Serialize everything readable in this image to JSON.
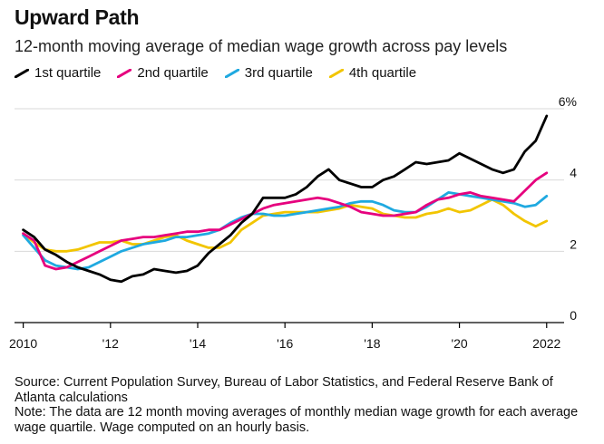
{
  "chart_data": {
    "type": "line",
    "title": "Upward Path",
    "subtitle": "12-month moving average of median wage growth across pay levels",
    "xlabel": "",
    "ylabel": "",
    "xlim": [
      2009.8,
      2022.4
    ],
    "ylim": [
      0,
      6
    ],
    "x_ticks": [
      2010,
      2012,
      2014,
      2016,
      2018,
      2020,
      2022
    ],
    "x_tick_labels": [
      "2010",
      "'12",
      "'14",
      "'16",
      "'18",
      "'20",
      "2022"
    ],
    "y_ticks": [
      0,
      2,
      4,
      6
    ],
    "y_tick_labels": [
      "0",
      "2",
      "4",
      "6%"
    ],
    "series": [
      {
        "name": "1st quartile",
        "color": "#000000",
        "x": [
          2010.0,
          2010.25,
          2010.5,
          2010.75,
          2011.0,
          2011.25,
          2011.5,
          2011.75,
          2012.0,
          2012.25,
          2012.5,
          2012.75,
          2013.0,
          2013.25,
          2013.5,
          2013.75,
          2014.0,
          2014.25,
          2014.5,
          2014.75,
          2015.0,
          2015.25,
          2015.5,
          2015.75,
          2016.0,
          2016.25,
          2016.5,
          2016.75,
          2017.0,
          2017.25,
          2017.5,
          2017.75,
          2018.0,
          2018.25,
          2018.5,
          2018.75,
          2019.0,
          2019.25,
          2019.5,
          2019.75,
          2020.0,
          2020.25,
          2020.5,
          2020.75,
          2021.0,
          2021.25,
          2021.5,
          2021.75,
          2022.0
        ],
        "values": [
          2.6,
          2.4,
          2.05,
          1.9,
          1.7,
          1.55,
          1.45,
          1.35,
          1.2,
          1.15,
          1.3,
          1.35,
          1.5,
          1.45,
          1.4,
          1.45,
          1.6,
          1.95,
          2.2,
          2.45,
          2.8,
          3.05,
          3.5,
          3.5,
          3.5,
          3.6,
          3.8,
          4.1,
          4.3,
          4.0,
          3.9,
          3.8,
          3.8,
          4.0,
          4.1,
          4.3,
          4.5,
          4.45,
          4.5,
          4.55,
          4.75,
          4.6,
          4.45,
          4.3,
          4.2,
          4.3,
          4.8,
          5.1,
          5.8
        ]
      },
      {
        "name": "2nd quartile",
        "color": "#e6007e",
        "x": [
          2010.0,
          2010.25,
          2010.5,
          2010.75,
          2011.0,
          2011.25,
          2011.5,
          2011.75,
          2012.0,
          2012.25,
          2012.5,
          2012.75,
          2013.0,
          2013.25,
          2013.5,
          2013.75,
          2014.0,
          2014.25,
          2014.5,
          2014.75,
          2015.0,
          2015.25,
          2015.5,
          2015.75,
          2016.0,
          2016.25,
          2016.5,
          2016.75,
          2017.0,
          2017.25,
          2017.5,
          2017.75,
          2018.0,
          2018.25,
          2018.5,
          2018.75,
          2019.0,
          2019.25,
          2019.5,
          2019.75,
          2020.0,
          2020.25,
          2020.5,
          2020.75,
          2021.0,
          2021.25,
          2021.5,
          2021.75,
          2022.0
        ],
        "values": [
          2.5,
          2.3,
          1.6,
          1.5,
          1.55,
          1.7,
          1.85,
          2.0,
          2.15,
          2.3,
          2.35,
          2.4,
          2.4,
          2.45,
          2.5,
          2.55,
          2.55,
          2.6,
          2.6,
          2.75,
          2.9,
          3.05,
          3.2,
          3.3,
          3.35,
          3.4,
          3.45,
          3.5,
          3.45,
          3.35,
          3.25,
          3.1,
          3.05,
          3.0,
          3.0,
          3.05,
          3.1,
          3.3,
          3.45,
          3.5,
          3.6,
          3.65,
          3.55,
          3.5,
          3.45,
          3.4,
          3.7,
          4.0,
          4.2
        ]
      },
      {
        "name": "3rd quartile",
        "color": "#1fa9e0",
        "x": [
          2010.0,
          2010.25,
          2010.5,
          2010.75,
          2011.0,
          2011.25,
          2011.5,
          2011.75,
          2012.0,
          2012.25,
          2012.5,
          2012.75,
          2013.0,
          2013.25,
          2013.5,
          2013.75,
          2014.0,
          2014.25,
          2014.5,
          2014.75,
          2015.0,
          2015.25,
          2015.5,
          2015.75,
          2016.0,
          2016.25,
          2016.5,
          2016.75,
          2017.0,
          2017.25,
          2017.5,
          2017.75,
          2018.0,
          2018.25,
          2018.5,
          2018.75,
          2019.0,
          2019.25,
          2019.5,
          2019.75,
          2020.0,
          2020.25,
          2020.5,
          2020.75,
          2021.0,
          2021.25,
          2021.5,
          2021.75,
          2022.0
        ],
        "values": [
          2.45,
          2.1,
          1.75,
          1.6,
          1.55,
          1.5,
          1.55,
          1.7,
          1.85,
          2.0,
          2.1,
          2.2,
          2.25,
          2.3,
          2.4,
          2.4,
          2.45,
          2.5,
          2.6,
          2.8,
          2.95,
          3.05,
          3.05,
          3.0,
          3.0,
          3.05,
          3.1,
          3.15,
          3.2,
          3.25,
          3.35,
          3.4,
          3.4,
          3.3,
          3.15,
          3.1,
          3.1,
          3.25,
          3.45,
          3.65,
          3.6,
          3.55,
          3.5,
          3.45,
          3.4,
          3.35,
          3.25,
          3.3,
          3.55
        ]
      },
      {
        "name": "4th quartile",
        "color": "#f2c500",
        "x": [
          2010.0,
          2010.25,
          2010.5,
          2010.75,
          2011.0,
          2011.25,
          2011.5,
          2011.75,
          2012.0,
          2012.25,
          2012.5,
          2012.75,
          2013.0,
          2013.25,
          2013.5,
          2013.75,
          2014.0,
          2014.25,
          2014.5,
          2014.75,
          2015.0,
          2015.25,
          2015.5,
          2015.75,
          2016.0,
          2016.25,
          2016.5,
          2016.75,
          2017.0,
          2017.25,
          2017.5,
          2017.75,
          2018.0,
          2018.25,
          2018.5,
          2018.75,
          2019.0,
          2019.25,
          2019.5,
          2019.75,
          2020.0,
          2020.25,
          2020.5,
          2020.75,
          2021.0,
          2021.25,
          2021.5,
          2021.75,
          2022.0
        ],
        "values": [
          2.5,
          2.25,
          2.05,
          2.0,
          2.0,
          2.05,
          2.15,
          2.25,
          2.25,
          2.3,
          2.2,
          2.2,
          2.3,
          2.4,
          2.45,
          2.3,
          2.2,
          2.1,
          2.1,
          2.25,
          2.6,
          2.8,
          3.0,
          3.05,
          3.1,
          3.1,
          3.1,
          3.1,
          3.15,
          3.2,
          3.3,
          3.25,
          3.2,
          3.05,
          3.0,
          2.95,
          2.95,
          3.05,
          3.1,
          3.2,
          3.1,
          3.15,
          3.3,
          3.45,
          3.3,
          3.05,
          2.85,
          2.7,
          2.85
        ]
      }
    ]
  },
  "footer": {
    "source": "Source: Current Population Survey, Bureau of Labor Statistics, and Federal Reserve Bank of Atlanta calculations",
    "note": "Note: The data are 12 month moving averages of monthly median wage growth for each average wage quartile. Wage computed on an hourly basis."
  }
}
